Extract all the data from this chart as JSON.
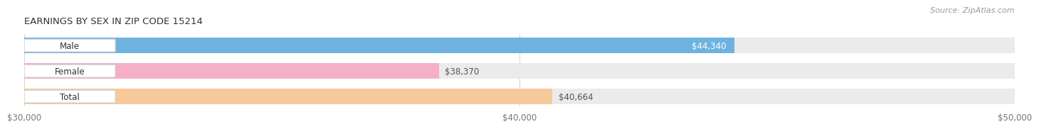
{
  "title": "EARNINGS BY SEX IN ZIP CODE 15214",
  "source": "Source: ZipAtlas.com",
  "categories": [
    "Male",
    "Female",
    "Total"
  ],
  "values": [
    44340,
    38370,
    40664
  ],
  "labels": [
    "$44,340",
    "$38,370",
    "$40,664"
  ],
  "bar_colors": [
    "#6eb3e0",
    "#f5afc6",
    "#f6ca9a"
  ],
  "track_color": "#ebebeb",
  "xmin": 30000,
  "xmax": 50000,
  "xticks": [
    30000,
    40000,
    50000
  ],
  "xtick_labels": [
    "$30,000",
    "$40,000",
    "$50,000"
  ],
  "background_color": "#ffffff",
  "title_fontsize": 9.5,
  "label_fontsize": 8.5,
  "tick_fontsize": 8.5,
  "source_fontsize": 8
}
